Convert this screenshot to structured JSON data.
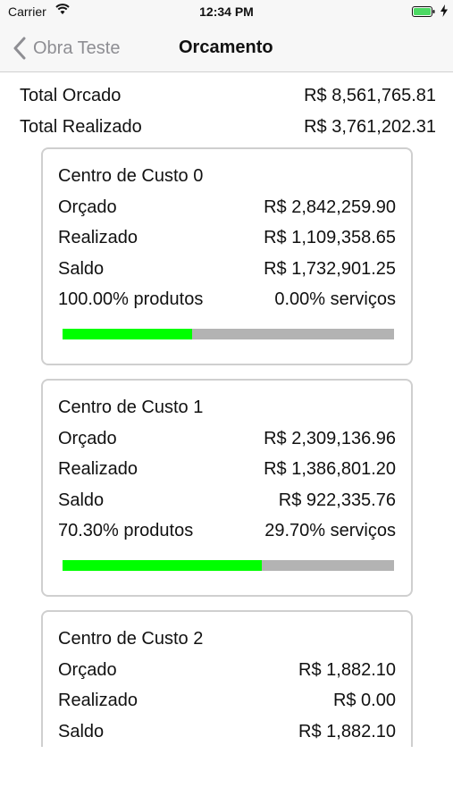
{
  "status_bar": {
    "carrier": "Carrier",
    "time": "12:34 PM"
  },
  "nav": {
    "back_label": "Obra Teste",
    "title": "Orcamento"
  },
  "totals": [
    {
      "label": "Total Orcado",
      "value": "R$ 8,561,765.81"
    },
    {
      "label": "Total Realizado",
      "value": "R$ 3,761,202.31"
    }
  ],
  "cost_centers": [
    {
      "title": "Centro de Custo 0",
      "rows": [
        {
          "label": "Orçado",
          "value": "R$ 2,842,259.90"
        },
        {
          "label": "Realizado",
          "value": "R$ 1,109,358.65"
        },
        {
          "label": "Saldo",
          "value": "R$ 1,732,901.25"
        },
        {
          "label": "100.00% produtos",
          "value": "0.00% serviços"
        }
      ],
      "progress_fraction": 0.39
    },
    {
      "title": "Centro de Custo 1",
      "rows": [
        {
          "label": "Orçado",
          "value": "R$ 2,309,136.96"
        },
        {
          "label": "Realizado",
          "value": "R$ 1,386,801.20"
        },
        {
          "label": "Saldo",
          "value": "R$ 922,335.76"
        },
        {
          "label": "70.30% produtos",
          "value": "29.70% serviços"
        }
      ],
      "progress_fraction": 0.6
    },
    {
      "title": "Centro de Custo 2",
      "rows": [
        {
          "label": "Orçado",
          "value": "R$ 1,882.10"
        },
        {
          "label": "Realizado",
          "value": "R$ 0.00"
        },
        {
          "label": "Saldo",
          "value": "R$ 1,882.10"
        }
      ]
    }
  ],
  "colors": {
    "progress_fill": "#00ff00",
    "progress_track": "#b3b3b3",
    "card_border": "#cfcfcf",
    "nav_back": "#8e8e93",
    "battery": "#4cd964"
  },
  "icons": {
    "status": [
      "wifi-icon",
      "battery-icon",
      "charging-bolt-icon"
    ],
    "nav": [
      "chevron-left-icon"
    ]
  }
}
